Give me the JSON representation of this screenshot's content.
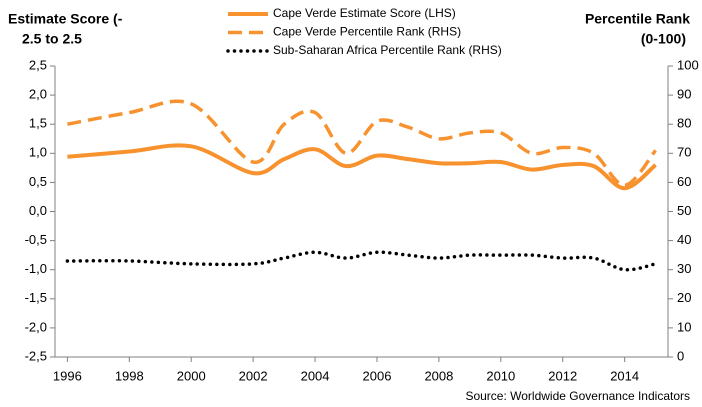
{
  "chart_data": {
    "type": "line",
    "ylabel": [
      "Estimate Score (-",
      "2.5 to 2.5"
    ],
    "y2label": [
      "Percentile Rank",
      "(0-100)"
    ],
    "source": "Source: Worldwide Governance Indicators",
    "x": [
      1996,
      1998,
      2000,
      2002,
      2003,
      2004,
      2005,
      2006,
      2007,
      2008,
      2009,
      2010,
      2011,
      2012,
      2013,
      2014,
      2015
    ],
    "xlim": [
      1995.6,
      2015.4
    ],
    "xticks": [
      1996,
      1998,
      2000,
      2002,
      2004,
      2006,
      2008,
      2010,
      2012,
      2014
    ],
    "ylim": [
      -2.5,
      2.5
    ],
    "yticks": [
      {
        "value": -2.5,
        "label": "-2,5"
      },
      {
        "value": -2.0,
        "label": "-2,0"
      },
      {
        "value": -1.5,
        "label": "-1,5"
      },
      {
        "value": -1.0,
        "label": "-1,0"
      },
      {
        "value": -0.5,
        "label": "-0,5"
      },
      {
        "value": 0,
        "label": "0,0"
      },
      {
        "value": 0.5,
        "label": "0,5"
      },
      {
        "value": 1.0,
        "label": "1,0"
      },
      {
        "value": 1.5,
        "label": "1,5"
      },
      {
        "value": 2.0,
        "label": "2,0"
      },
      {
        "value": 2.5,
        "label": "2,5"
      }
    ],
    "y2lim": [
      0,
      100
    ],
    "y2ticks": [
      0,
      10,
      20,
      30,
      40,
      50,
      60,
      70,
      80,
      90,
      100
    ],
    "series": [
      {
        "name": "Cape Verde Estimate Score (LHS)",
        "color": "#f7922e",
        "style": "solid",
        "values": [
          0.94,
          1.03,
          1.12,
          0.66,
          0.9,
          1.07,
          0.78,
          0.96,
          0.9,
          0.83,
          0.83,
          0.85,
          0.72,
          0.8,
          0.78,
          0.4,
          0.8
        ]
      },
      {
        "name": "Cape Verde Percentile Rank (RHS)",
        "color": "#f7922e",
        "style": "dashed",
        "axis": "y2",
        "values": [
          80,
          84,
          87,
          67,
          80,
          84,
          70,
          81,
          79,
          75,
          77,
          77,
          70,
          72,
          70,
          59,
          71
        ]
      },
      {
        "name": "Sub-Saharan Africa Percentile Rank (RHS)",
        "color": "#000000",
        "style": "dotted",
        "axis": "y2",
        "values": [
          33,
          33,
          32,
          32,
          34,
          36,
          34,
          36,
          35,
          34,
          35,
          35,
          35,
          34,
          34,
          30,
          32
        ]
      }
    ]
  }
}
